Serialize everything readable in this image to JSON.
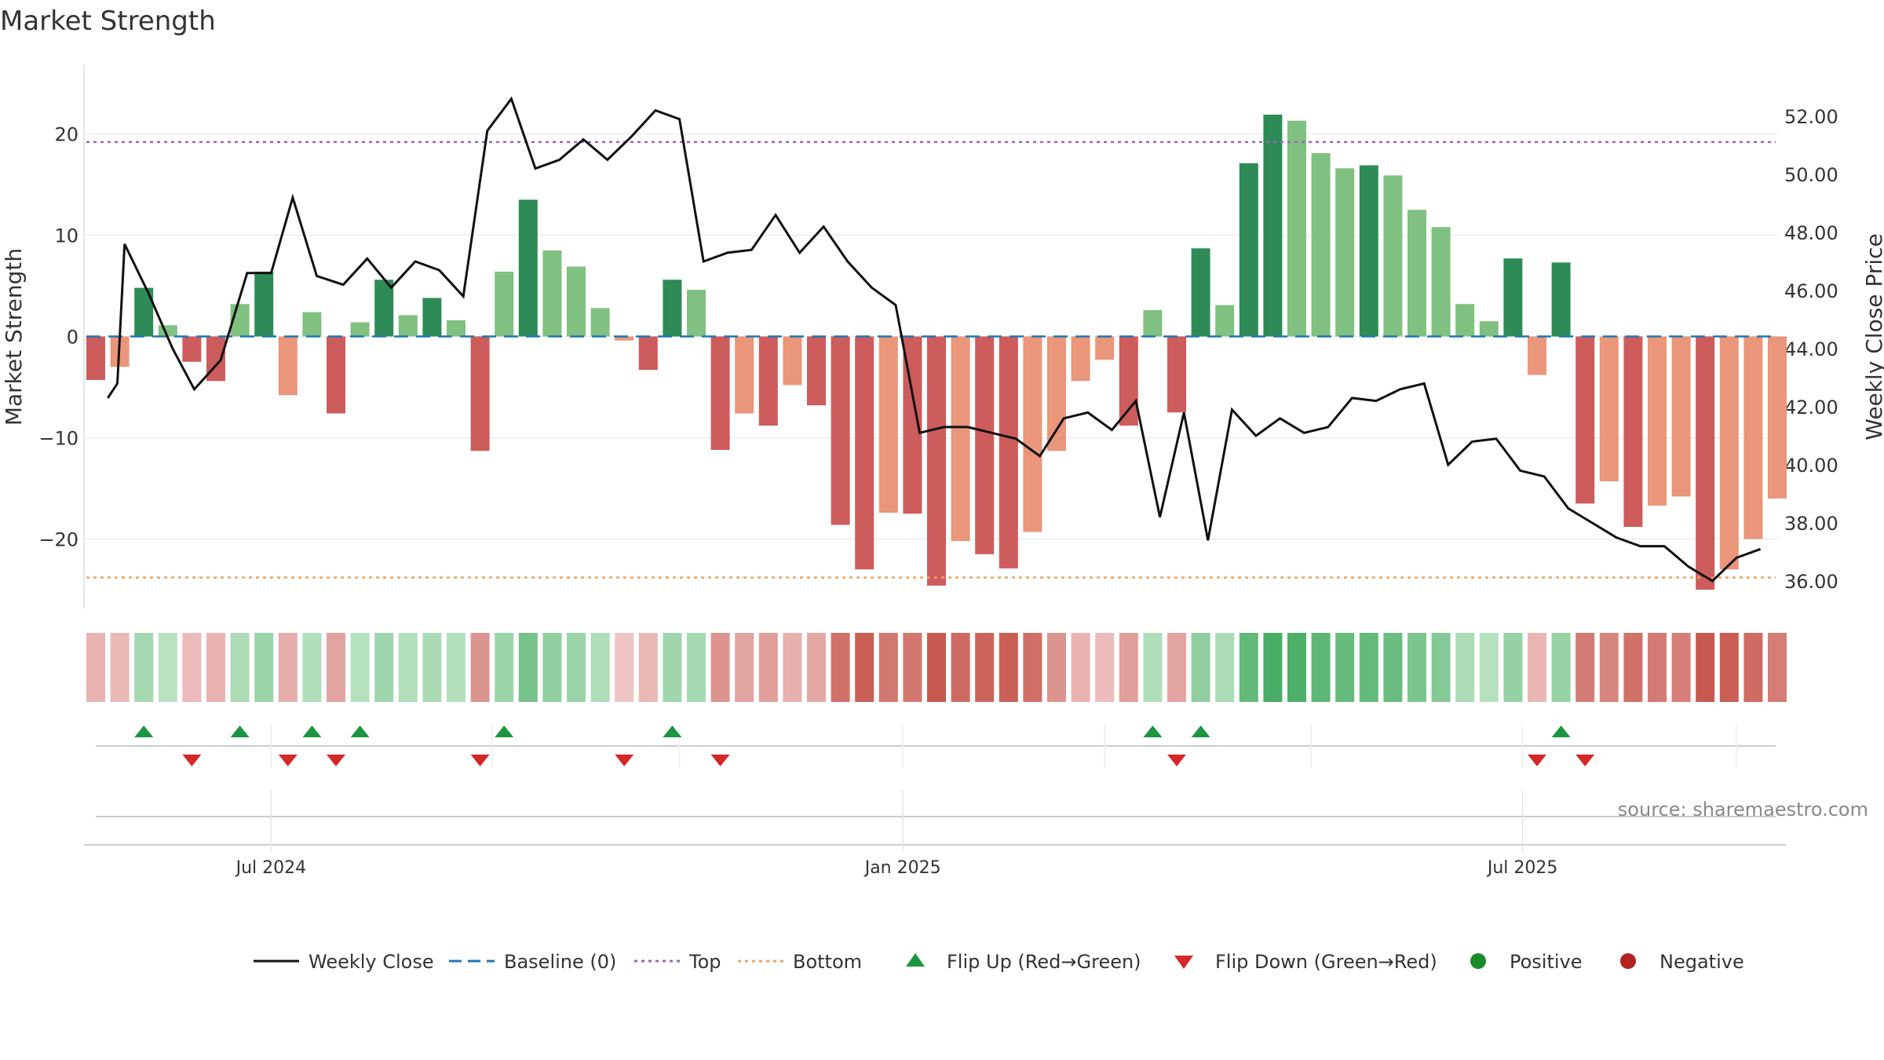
{
  "chart_data": {
    "type": "bar",
    "title": "Market Strength",
    "ylabel_left": "Market Strength",
    "ylabel_right": "Weekly Close Price",
    "left_ylim": [
      -27,
      27
    ],
    "right_ylim": [
      35,
      54
    ],
    "left_ticks": [
      "−20",
      "−10",
      "0",
      "10",
      "20"
    ],
    "left_tick_values": [
      -20,
      -10,
      0,
      10,
      20
    ],
    "right_ticks": [
      "36.00",
      "38.00",
      "40.00",
      "42.00",
      "44.00",
      "46.00",
      "48.00",
      "50.00",
      "52.00"
    ],
    "right_tick_values": [
      36,
      38,
      40,
      42,
      44,
      46,
      48,
      50,
      52
    ],
    "top_level": 19.2,
    "bottom_level": -23.8,
    "baseline": 0,
    "x_labels": [
      {
        "label": "Jul 2024",
        "week": 7.3
      },
      {
        "label": "Jan 2025",
        "week": 33.6
      },
      {
        "label": "Jul 2025",
        "week": 59.4
      }
    ],
    "source": "source: sharemaestro.com",
    "market_strength": [
      -4.3,
      -3.0,
      4.8,
      1.1,
      -2.5,
      -4.4,
      3.2,
      6.4,
      -5.8,
      2.4,
      -7.6,
      1.4,
      5.6,
      2.1,
      3.8,
      1.6,
      -11.3,
      6.4,
      13.5,
      8.5,
      6.9,
      2.8,
      -0.4,
      -3.3,
      5.6,
      4.6,
      -11.2,
      -7.6,
      -8.8,
      -4.8,
      -6.8,
      -18.6,
      -23.0,
      -17.4,
      -17.5,
      -24.6,
      -20.2,
      -21.5,
      -22.9,
      -19.3,
      -11.3,
      -4.4,
      -2.3,
      -8.8,
      2.6,
      -7.5,
      8.7,
      3.1,
      17.1,
      21.9,
      21.3,
      18.1,
      16.6,
      16.9,
      15.9,
      12.5,
      10.8,
      3.2,
      1.5,
      7.7,
      -3.8,
      7.3,
      -16.5,
      -14.3,
      -18.8,
      -16.7,
      -15.8,
      -25.0,
      -23.0,
      -20.0,
      -16.0
    ],
    "weekly_close": [
      42.3,
      42.8,
      47.6,
      45.9,
      44.0,
      42.6,
      43.6,
      46.6,
      46.6,
      49.2,
      46.5,
      46.2,
      47.1,
      46.1,
      47.0,
      46.7,
      45.8,
      51.5,
      52.6,
      50.2,
      50.5,
      51.2,
      50.5,
      51.3,
      52.2,
      51.9,
      47.0,
      47.3,
      47.4,
      48.6,
      47.3,
      48.2,
      47.0,
      46.1,
      45.5,
      41.1,
      41.3,
      41.3,
      41.1,
      40.9,
      40.3,
      41.6,
      41.8,
      41.2,
      42.2,
      38.2,
      41.8,
      37.4,
      41.9,
      41.0,
      41.6,
      41.1,
      41.3,
      42.3,
      42.2,
      42.6,
      42.8,
      40.0,
      40.8,
      40.9,
      39.8,
      39.6,
      38.5,
      38.0,
      37.5,
      37.2,
      37.2,
      36.5,
      36.0,
      36.8,
      37.1
    ],
    "close_x_offsets": [
      0.5,
      0.9,
      1.2,
      2.2,
      3.2,
      4.1,
      5.2,
      6.3,
      7.3,
      8.2,
      9.2,
      10.3,
      11.3,
      12.3,
      13.3,
      14.3,
      15.3,
      16.3,
      17.3,
      18.3,
      19.3,
      20.3,
      21.3,
      22.3,
      23.3,
      24.3,
      25.3,
      26.3,
      27.3,
      28.3,
      29.3,
      30.3,
      31.3,
      32.3,
      33.3,
      34.3,
      35.3,
      36.3,
      37.3,
      38.3,
      39.3,
      40.3,
      41.3,
      42.3,
      43.3,
      44.3,
      45.3,
      46.3,
      47.3,
      48.3,
      49.3,
      50.3,
      51.3,
      52.3,
      53.3,
      54.3,
      55.3,
      56.3,
      57.3,
      58.3,
      59.3,
      60.3,
      61.3,
      62.3,
      63.3,
      64.3,
      65.3,
      66.3,
      67.3,
      68.3,
      69.3
    ],
    "flip_up_weeks": [
      2,
      6,
      9,
      11,
      17,
      24,
      44,
      46,
      61
    ],
    "flip_down_weeks": [
      4,
      8,
      10,
      16,
      22,
      26,
      45,
      60,
      62
    ],
    "legend": [
      {
        "label": "Weekly Close",
        "symbol": "line",
        "color": "#111111"
      },
      {
        "label": "Baseline (0)",
        "symbol": "dash",
        "color": "#1f77b4"
      },
      {
        "label": "Top",
        "symbol": "dot",
        "color": "#9467bd"
      },
      {
        "label": "Bottom",
        "symbol": "dot",
        "color": "#f0a060"
      },
      {
        "label": "Flip Up (Red→Green)",
        "symbol": "tri-up",
        "color": "#1a9641"
      },
      {
        "label": "Flip Down (Green→Red)",
        "symbol": "tri-down",
        "color": "#d62728"
      },
      {
        "label": "Positive",
        "symbol": "circle",
        "color": "#1a8a2a"
      },
      {
        "label": "Negative",
        "symbol": "circle",
        "color": "#b22222"
      }
    ],
    "colors": {
      "pos_dark": "#2e8b57",
      "pos_light": "#80c080",
      "neg_dark": "#cd5c5c",
      "neg_light": "#e9967a",
      "close_line": "#111111",
      "baseline": "#1f77b4",
      "top": "#9467bd",
      "bottom": "#f0a060"
    }
  }
}
